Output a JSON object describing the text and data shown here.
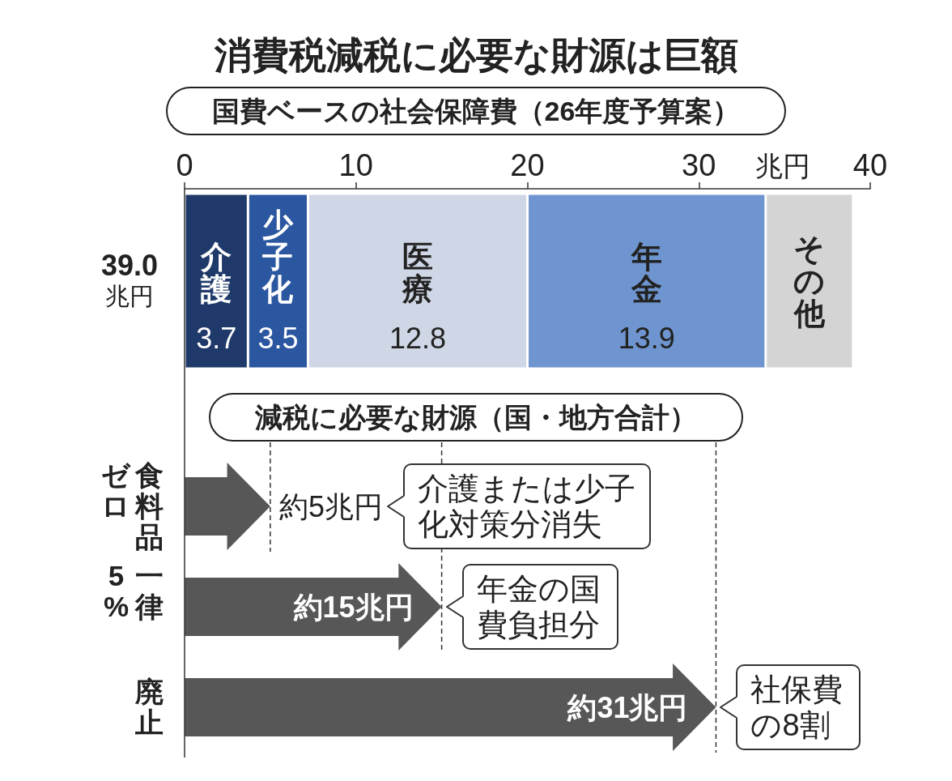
{
  "chart_data": {
    "type": "bar",
    "orientation": "horizontal",
    "stacked": true,
    "title": "消費税減税に必要な財源は巨額",
    "subtitle": "国費ベースの社会保障費（26年度予算案）",
    "xlabel": "兆円",
    "categories": [
      "39.0兆円",
      "食料品ゼロ",
      "一律5%",
      "廃止"
    ],
    "xlim": [
      0,
      40
    ],
    "xticks": [
      0,
      10,
      20,
      30,
      40
    ],
    "series": [
      {
        "name": "介護",
        "color": "#1f3a6a",
        "values": [
          3.7,
          null,
          null,
          null
        ],
        "value_labels": [
          "3.7",
          null,
          null,
          null
        ]
      },
      {
        "name": "少子化",
        "color": "#2b56a0",
        "values": [
          3.5,
          null,
          null,
          null
        ],
        "value_labels": [
          "3.5",
          null,
          null,
          null
        ]
      },
      {
        "name": "医療",
        "color": "#cfd7e6",
        "values": [
          12.8,
          null,
          null,
          null
        ],
        "value_labels": [
          "12.8",
          null,
          null,
          null
        ]
      },
      {
        "name": "年金",
        "color": "#6e95cf",
        "values": [
          13.9,
          null,
          null,
          null
        ],
        "value_labels": [
          "13.9",
          null,
          null,
          null
        ]
      },
      {
        "name": "その他",
        "color": "#d4d4d4",
        "values": [
          5.1,
          null,
          null,
          null
        ]
      },
      {
        "color": "#575757",
        "values": [
          null,
          5,
          15,
          31
        ],
        "value_labels": [
          null,
          "約5兆円",
          "約15兆円",
          "約31兆円"
        ]
      }
    ],
    "ref_lines": [
      {
        "axis": "x",
        "value": 5,
        "line_style": "dashed"
      },
      {
        "axis": "x",
        "value": 15,
        "line_style": "dashed"
      },
      {
        "axis": "x",
        "value": 31,
        "line_style": "dashed"
      }
    ],
    "annotations": [
      "減税に必要な財源（国・地方合計）",
      "介護または少子化対策分消失",
      {
        "text": "年金の国費負担分",
        "x": 15,
        "y": "一律5%"
      },
      {
        "text": "社保費の8割",
        "x": 31,
        "y": "廃止"
      }
    ]
  }
}
